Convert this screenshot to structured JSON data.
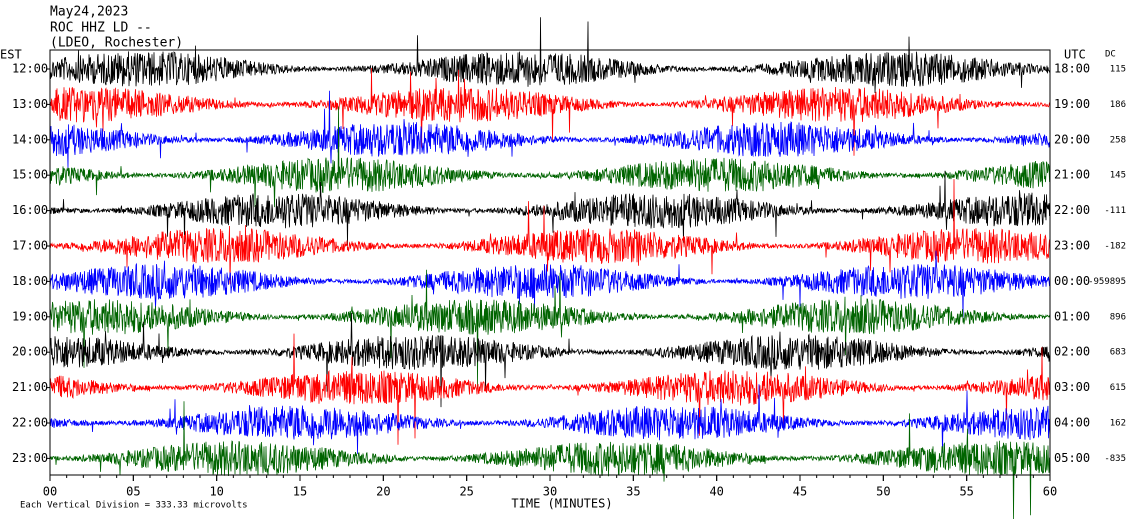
{
  "chart_data": {
    "type": "helicorder",
    "title": [
      "May24,2023",
      "ROC HHZ LD --",
      "(LDEO, Rochester)"
    ],
    "left_axis_label": "EST",
    "right_axis_label": "UTC",
    "dc_label": "DC",
    "xlabel": "TIME (MINUTES)",
    "footnote": "Each Vertical Division =  333.33 microvolts",
    "xlim": [
      0,
      60
    ],
    "xticks": [
      {
        "value": 0,
        "label": "00"
      },
      {
        "value": 5,
        "label": "05"
      },
      10,
      15,
      20,
      25,
      30,
      35,
      40,
      45,
      50,
      55,
      60
    ],
    "rows": [
      {
        "est": "12:00",
        "utc": "18:00",
        "dc": 115,
        "color": "#000000"
      },
      {
        "est": "13:00",
        "utc": "19:00",
        "dc": 186,
        "color": "#ff0000"
      },
      {
        "est": "14:00",
        "utc": "20:00",
        "dc": 258,
        "color": "#0000ff"
      },
      {
        "est": "15:00",
        "utc": "21:00",
        "dc": 145,
        "color": "#006400"
      },
      {
        "est": "16:00",
        "utc": "22:00",
        "dc": -111,
        "color": "#000000"
      },
      {
        "est": "17:00",
        "utc": "23:00",
        "dc": -182,
        "color": "#ff0000"
      },
      {
        "est": "18:00",
        "utc": "00:00",
        "dc": -959895,
        "color": "#0000ff"
      },
      {
        "est": "19:00",
        "utc": "01:00",
        "dc": 896,
        "color": "#006400"
      },
      {
        "est": "20:00",
        "utc": "02:00",
        "dc": 683,
        "color": "#000000"
      },
      {
        "est": "21:00",
        "utc": "03:00",
        "dc": 615,
        "color": "#ff0000"
      },
      {
        "est": "22:00",
        "utc": "04:00",
        "dc": 162,
        "color": "#0000ff"
      },
      {
        "est": "23:00",
        "utc": "05:00",
        "dc": -835,
        "color": "#006400"
      }
    ]
  }
}
